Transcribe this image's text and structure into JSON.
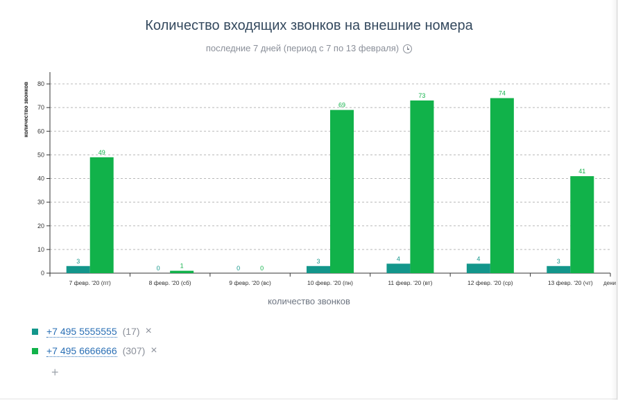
{
  "title": "Количество входящих звонков на внешние номера",
  "subtitle": "последние 7 дней (период с 7 по 13 февраля)",
  "icons": {
    "subtitle": "clock-icon",
    "remove": "close-icon",
    "add": "plus-icon"
  },
  "chart_data": {
    "type": "bar",
    "title": "Количество входящих звонков на внешние номера",
    "subtitle": "последние 7 дней (период с 7 по 13 февраля)",
    "xlabel": "количество звонков",
    "xlabel_end": "дени",
    "ylabel": "количество звонков",
    "ylim": [
      0,
      85
    ],
    "yticks": [
      0,
      10,
      20,
      30,
      40,
      50,
      60,
      70,
      80
    ],
    "grid": true,
    "categories": [
      "7 февр. '20 (пт)",
      "8 февр. '20 (сб)",
      "9 февр. '20 (вс)",
      "10 февр. '20 (пн)",
      "11 февр. '20 (вт)",
      "12 февр. '20 (ср)",
      "13 февр. '20 (чт)"
    ],
    "series": [
      {
        "name": "+7 495 5555555",
        "color": "#13968b",
        "values": [
          3,
          0,
          0,
          3,
          4,
          4,
          3
        ]
      },
      {
        "name": "+7 495 6666666",
        "color": "#11b24a",
        "values": [
          49,
          1,
          0,
          69,
          73,
          74,
          41
        ]
      }
    ]
  },
  "legend": [
    {
      "phone": "+7 495 5555555",
      "count": "(17)",
      "remove": "×",
      "color": "#13968b"
    },
    {
      "phone": "+7 495 6666666",
      "count": "(307)",
      "remove": "×",
      "color": "#11b24a"
    }
  ],
  "add_label": "+"
}
